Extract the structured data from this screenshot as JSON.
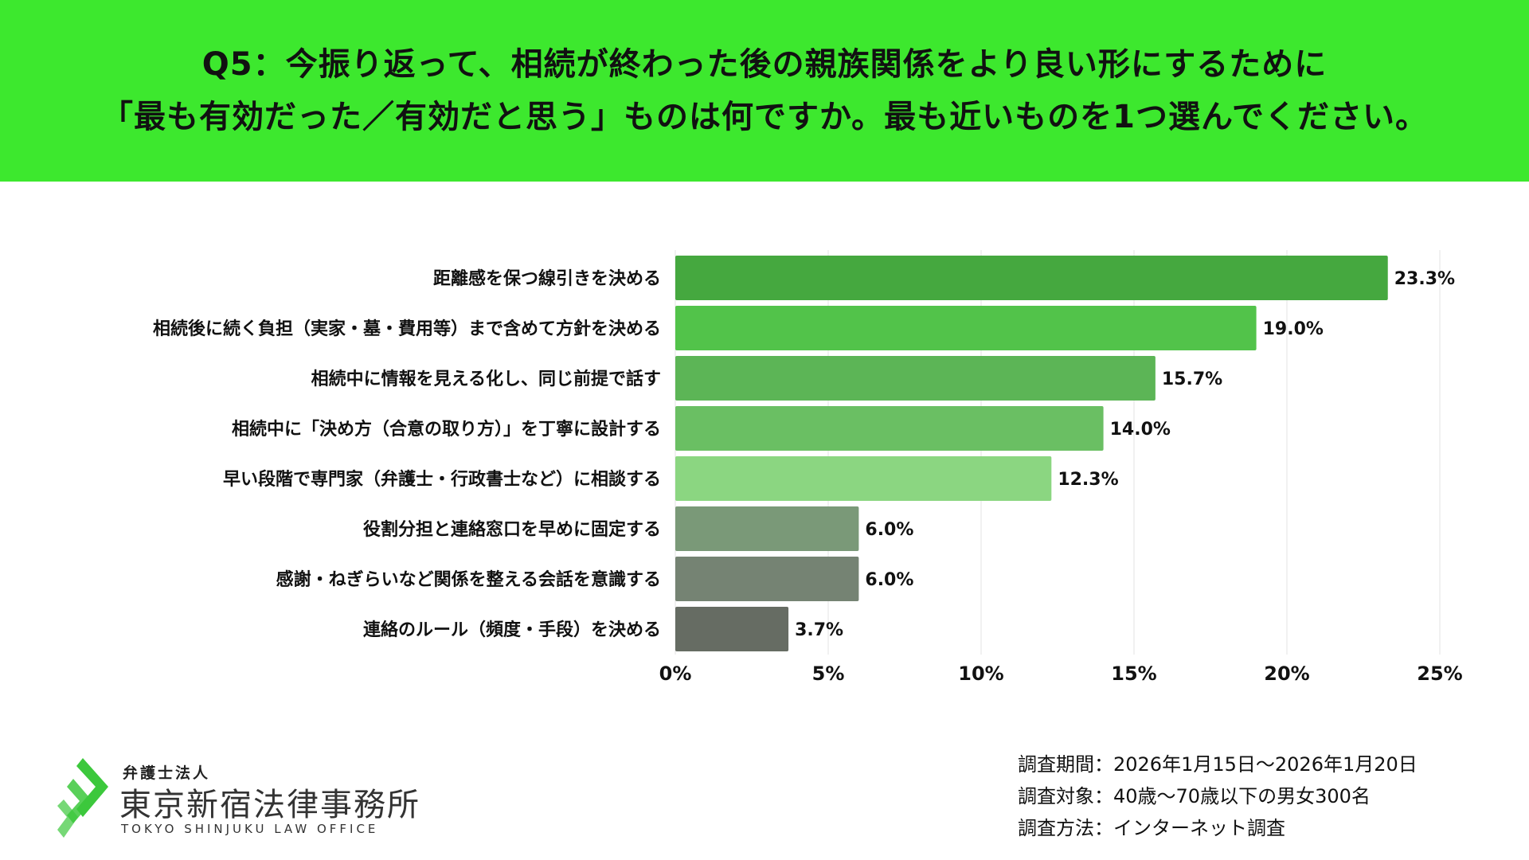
{
  "header": {
    "title_line1": "Q5：今振り返って、相続が終わった後の親族関係をより良い形にするために",
    "title_line2": "「最も有効だった／有効だと思う」ものは何ですか。最も近いものを1つ選んでください。",
    "bg_color": "#3DE82E"
  },
  "chart_data": {
    "type": "bar",
    "orientation": "horizontal",
    "categories": [
      "距離感を保つ線引きを決める",
      "相続後に続く負担（実家・墓・費用等）まで含めて方針を決める",
      "相続中に情報を見える化し、同じ前提で話す",
      "相続中に「決め方（合意の取り方）」を丁寧に設計する",
      "早い段階で専門家（弁護士・行政書士など）に相談する",
      "役割分担と連絡窓口を早めに固定する",
      "感謝・ねぎらいなど関係を整える会話を意識する",
      "連絡のルール（頻度・手段）を決める"
    ],
    "values": [
      23.3,
      19.0,
      15.7,
      14.0,
      12.3,
      6.0,
      6.0,
      3.7
    ],
    "value_labels": [
      "23.3%",
      "19.0%",
      "15.7%",
      "14.0%",
      "12.3%",
      "6.0%",
      "6.0%",
      "3.7%"
    ],
    "colors": [
      "#45A83F",
      "#52C34A",
      "#5CB556",
      "#6ABF63",
      "#8BD681",
      "#7A9978",
      "#758373",
      "#666C63"
    ],
    "xlim": [
      0,
      25
    ],
    "xticks": [
      0,
      5,
      10,
      15,
      20,
      25
    ],
    "xtick_labels": [
      "0%",
      "5%",
      "10%",
      "15%",
      "20%",
      "25%"
    ],
    "title": "",
    "xlabel": "",
    "ylabel": "",
    "grid": true
  },
  "logo": {
    "org_type": "弁護士法人",
    "name": "東京新宿法律事務所",
    "name_en": "TOKYO SHINJUKU LAW OFFICE",
    "mark_color": "#3CC83C"
  },
  "survey": {
    "period": "調査期間：2026年1月15日～2026年1月20日",
    "target": "調査対象：40歳～70歳以下の男女300名",
    "method": "調査方法：インターネット調査"
  }
}
